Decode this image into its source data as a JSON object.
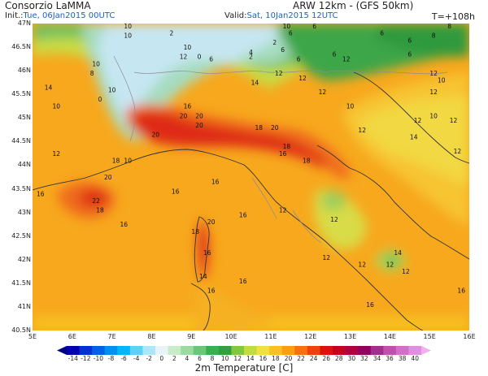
{
  "header": {
    "organization": "Consorzio LaMMA",
    "model": "ARW 12km - (GFS 50km)",
    "init_label": "Init.:",
    "init_value": "Tue, 06Jan2015 00UTC",
    "valid_label": "Valid:",
    "valid_value": "Sat, 10Jan2015 12UTC",
    "lead_time": "T=+108h"
  },
  "map": {
    "field": "2m Temperature",
    "lat_labels": [
      "47N",
      "46.5N",
      "46N",
      "45.5N",
      "45N",
      "44.5N",
      "44N",
      "43.5N",
      "43N",
      "42.5N",
      "42N",
      "41.5N",
      "41N",
      "40.5N"
    ],
    "lon_labels": [
      "5E",
      "6E",
      "7E",
      "8E",
      "9E",
      "10E",
      "11E",
      "12E",
      "13E",
      "14E",
      "15E",
      "16E"
    ],
    "extent": {
      "lon_min": 5,
      "lon_max": 16,
      "lat_min": 40.5,
      "lat_max": 47
    },
    "contour_labels": [
      {
        "t": "10",
        "lon": 7.4,
        "lat": 46.7
      },
      {
        "t": "2",
        "lon": 8.5,
        "lat": 46.75
      },
      {
        "t": "10",
        "lon": 7.4,
        "lat": 46.9
      },
      {
        "t": "6",
        "lon": 11.5,
        "lat": 46.75
      },
      {
        "t": "10",
        "lon": 11.4,
        "lat": 46.9
      },
      {
        "t": "6",
        "lon": 12.1,
        "lat": 46.9
      },
      {
        "t": "6",
        "lon": 13.8,
        "lat": 46.75
      },
      {
        "t": "6",
        "lon": 14.5,
        "lat": 46.6
      },
      {
        "t": "8",
        "lon": 15.1,
        "lat": 46.7
      },
      {
        "t": "8",
        "lon": 15.5,
        "lat": 46.9
      },
      {
        "t": "10",
        "lon": 6.6,
        "lat": 46.1
      },
      {
        "t": "8",
        "lon": 6.5,
        "lat": 45.9
      },
      {
        "t": "14",
        "lon": 5.4,
        "lat": 45.6
      },
      {
        "t": "10",
        "lon": 7.0,
        "lat": 45.55
      },
      {
        "t": "0",
        "lon": 6.7,
        "lat": 45.35
      },
      {
        "t": "10",
        "lon": 5.6,
        "lat": 45.2
      },
      {
        "t": "10",
        "lon": 8.9,
        "lat": 46.45
      },
      {
        "t": "12",
        "lon": 8.8,
        "lat": 46.25
      },
      {
        "t": "0",
        "lon": 9.2,
        "lat": 46.25
      },
      {
        "t": "6",
        "lon": 9.5,
        "lat": 46.2
      },
      {
        "t": "2",
        "lon": 10.5,
        "lat": 46.25
      },
      {
        "t": "4",
        "lon": 10.5,
        "lat": 46.35
      },
      {
        "t": "2",
        "lon": 11.1,
        "lat": 46.55
      },
      {
        "t": "6",
        "lon": 11.3,
        "lat": 46.4
      },
      {
        "t": "6",
        "lon": 11.7,
        "lat": 46.2
      },
      {
        "t": "12",
        "lon": 11.2,
        "lat": 45.9
      },
      {
        "t": "6",
        "lon": 12.6,
        "lat": 46.3
      },
      {
        "t": "12",
        "lon": 12.9,
        "lat": 46.2
      },
      {
        "t": "6",
        "lon": 14.5,
        "lat": 46.3
      },
      {
        "t": "12",
        "lon": 15.1,
        "lat": 45.9
      },
      {
        "t": "10",
        "lon": 15.3,
        "lat": 45.75
      },
      {
        "t": "12",
        "lon": 15.1,
        "lat": 45.5
      },
      {
        "t": "12",
        "lon": 11.8,
        "lat": 45.8
      },
      {
        "t": "12",
        "lon": 12.3,
        "lat": 45.5
      },
      {
        "t": "14",
        "lon": 10.6,
        "lat": 45.7
      },
      {
        "t": "10",
        "lon": 13.0,
        "lat": 45.2
      },
      {
        "t": "16",
        "lon": 8.9,
        "lat": 45.2
      },
      {
        "t": "20",
        "lon": 8.8,
        "lat": 45.0
      },
      {
        "t": "20",
        "lon": 9.2,
        "lat": 45.0
      },
      {
        "t": "20",
        "lon": 9.2,
        "lat": 44.8
      },
      {
        "t": "20",
        "lon": 8.1,
        "lat": 44.6
      },
      {
        "t": "18",
        "lon": 10.7,
        "lat": 44.75
      },
      {
        "t": "20",
        "lon": 11.1,
        "lat": 44.75
      },
      {
        "t": "12",
        "lon": 13.3,
        "lat": 44.7
      },
      {
        "t": "12",
        "lon": 14.7,
        "lat": 44.9
      },
      {
        "t": "10",
        "lon": 15.1,
        "lat": 45.0
      },
      {
        "t": "12",
        "lon": 15.6,
        "lat": 44.9
      },
      {
        "t": "14",
        "lon": 14.6,
        "lat": 44.55
      },
      {
        "t": "12",
        "lon": 15.7,
        "lat": 44.25
      },
      {
        "t": "12",
        "lon": 5.6,
        "lat": 44.2
      },
      {
        "t": "18",
        "lon": 7.1,
        "lat": 44.05
      },
      {
        "t": "10",
        "lon": 7.4,
        "lat": 44.05
      },
      {
        "t": "20",
        "lon": 6.9,
        "lat": 43.7
      },
      {
        "t": "16",
        "lon": 5.2,
        "lat": 43.35
      },
      {
        "t": "22",
        "lon": 6.6,
        "lat": 43.2
      },
      {
        "t": "18",
        "lon": 6.7,
        "lat": 43.0
      },
      {
        "t": "16",
        "lon": 8.6,
        "lat": 43.4
      },
      {
        "t": "16",
        "lon": 11.3,
        "lat": 44.2
      },
      {
        "t": "18",
        "lon": 11.4,
        "lat": 44.35
      },
      {
        "t": "18",
        "lon": 11.9,
        "lat": 44.05
      },
      {
        "t": "16",
        "lon": 9.6,
        "lat": 43.6
      },
      {
        "t": "16",
        "lon": 10.3,
        "lat": 42.9
      },
      {
        "t": "12",
        "lon": 11.3,
        "lat": 43.0
      },
      {
        "t": "16",
        "lon": 7.3,
        "lat": 42.7
      },
      {
        "t": "18",
        "lon": 9.1,
        "lat": 42.55
      },
      {
        "t": "20",
        "lon": 9.5,
        "lat": 42.75
      },
      {
        "t": "16",
        "lon": 9.4,
        "lat": 42.1
      },
      {
        "t": "12",
        "lon": 12.6,
        "lat": 42.8
      },
      {
        "t": "14",
        "lon": 14.2,
        "lat": 42.1
      },
      {
        "t": "12",
        "lon": 12.4,
        "lat": 42.0
      },
      {
        "t": "12",
        "lon": 13.3,
        "lat": 41.85
      },
      {
        "t": "12",
        "lon": 14.0,
        "lat": 41.85
      },
      {
        "t": "12",
        "lon": 14.4,
        "lat": 41.7
      },
      {
        "t": "14",
        "lon": 9.3,
        "lat": 41.6
      },
      {
        "t": "16",
        "lon": 10.3,
        "lat": 41.5
      },
      {
        "t": "16",
        "lon": 9.5,
        "lat": 41.3
      },
      {
        "t": "16",
        "lon": 15.8,
        "lat": 41.3
      },
      {
        "t": "16",
        "lon": 13.5,
        "lat": 41.0
      }
    ]
  },
  "colorbar": {
    "title": "2m Temperature [C]",
    "ticks": [
      "-14",
      "-12",
      "-10",
      "-8",
      "-6",
      "-4",
      "-2",
      "0",
      "2",
      "4",
      "6",
      "8",
      "10",
      "12",
      "14",
      "16",
      "18",
      "20",
      "22",
      "24",
      "26",
      "28",
      "30",
      "32",
      "34",
      "36",
      "38",
      "40"
    ],
    "colors": [
      "#0000b0",
      "#0030d8",
      "#0060e8",
      "#0090f0",
      "#00b8f8",
      "#60d0f8",
      "#a8e8f8",
      "#e8f4f8",
      "#c8ecc8",
      "#98dca0",
      "#68c878",
      "#38b050",
      "#30a040",
      "#80c840",
      "#c0dc40",
      "#f0e040",
      "#f8c020",
      "#f8a010",
      "#f87010",
      "#f04010",
      "#e01010",
      "#c80020",
      "#b00040",
      "#900060",
      "#a03090",
      "#c050b0",
      "#d070c8",
      "#e090e0"
    ],
    "unit": "C"
  }
}
